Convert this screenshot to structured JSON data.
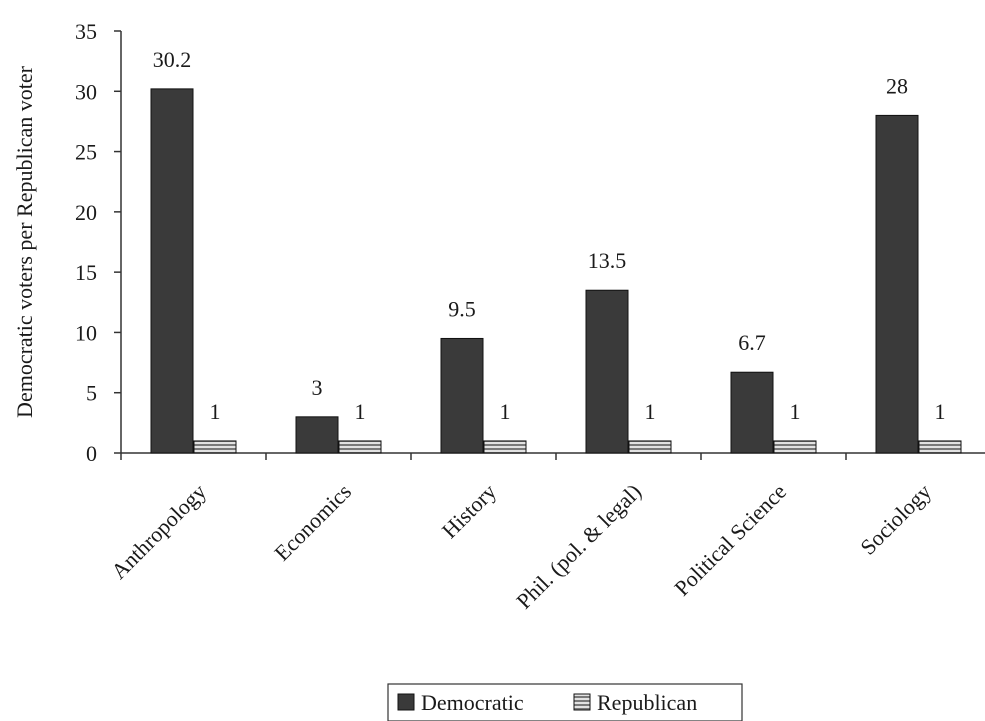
{
  "chart_data": {
    "type": "bar",
    "title": "",
    "xlabel": "",
    "ylabel": "Democratic voters per Republican voter",
    "ylim": [
      0,
      35
    ],
    "yticks": [
      0,
      5,
      10,
      15,
      20,
      25,
      30,
      35
    ],
    "grid": false,
    "legend_position": "bottom",
    "categories": [
      "Anthropology",
      "Economics",
      "History",
      "Phil. (pol. & legal)",
      "Political Science",
      "Sociology"
    ],
    "series": [
      {
        "name": "Democratic",
        "values": [
          30.2,
          3,
          9.5,
          13.5,
          6.7,
          28
        ],
        "labels": [
          "30.2",
          "3",
          "9.5",
          "13.5",
          "6.7",
          "28"
        ],
        "color": "#3a3a3a",
        "pattern": "solid"
      },
      {
        "name": "Republican",
        "values": [
          1,
          1,
          1,
          1,
          1,
          1
        ],
        "labels": [
          "1",
          "1",
          "1",
          "1",
          "1",
          "1"
        ],
        "color": "#9a9a9a",
        "pattern": "horizontal-stripes"
      }
    ]
  }
}
